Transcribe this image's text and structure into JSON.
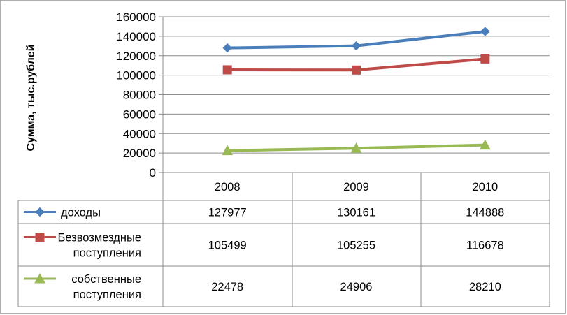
{
  "chart_data": {
    "type": "line",
    "ylabel": "Сумма, тыс.рублей",
    "xlabel": "",
    "ylim": [
      0,
      160000
    ],
    "yticks": [
      "0",
      "20000",
      "40000",
      "60000",
      "80000",
      "100000",
      "120000",
      "140000",
      "160000"
    ],
    "categories": [
      "2008",
      "2009",
      "2010"
    ],
    "grid": "horizontal",
    "legend": "data-table",
    "series": [
      {
        "name_lines": [
          "доходы"
        ],
        "marker": "diamond",
        "color": "#4a7ebb",
        "values": [
          127977,
          130161,
          144888
        ],
        "labels": [
          "127977",
          "130161",
          "144888"
        ]
      },
      {
        "name_lines": [
          "Безвозмездные",
          "поступления"
        ],
        "marker": "square",
        "color": "#be4b48",
        "values": [
          105499,
          105255,
          116678
        ],
        "labels": [
          "105499",
          "105255",
          "116678"
        ]
      },
      {
        "name_lines": [
          "собственные",
          "поступления"
        ],
        "marker": "triangle",
        "color": "#98b954",
        "values": [
          22478,
          24906,
          28210
        ],
        "labels": [
          "22478",
          "24906",
          "28210"
        ]
      }
    ]
  }
}
